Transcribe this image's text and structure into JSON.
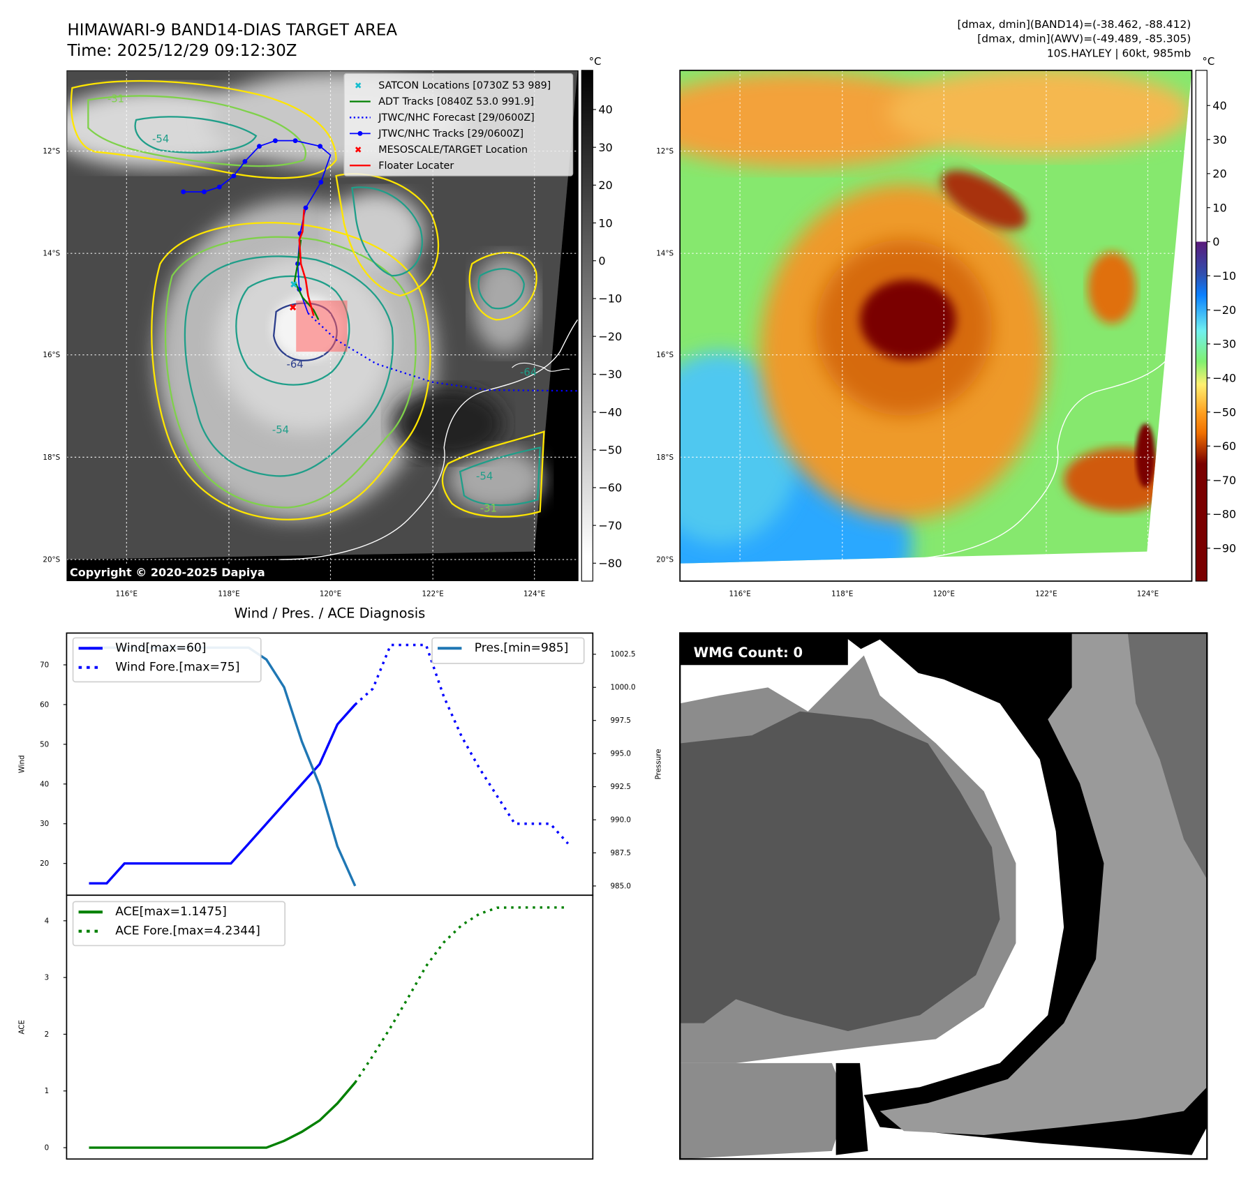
{
  "header": {
    "title": "HIMAWARI-9 BAND14-DIAS TARGET AREA",
    "time": "Time: 2025/12/29 09:12:30Z",
    "stats": [
      "[dmax, dmin](BAND14)=(-38.462, -88.412)",
      "[dmax, dmin](AWV)=(-49.489, -85.305)",
      "10S.HAYLEY | 60kt, 985mb"
    ]
  },
  "map": {
    "lat_ticks": [
      "12°S",
      "14°S",
      "16°S",
      "18°S",
      "20°S"
    ],
    "lon_ticks": [
      "116°E",
      "118°E",
      "120°E",
      "122°E",
      "124°E"
    ],
    "copyright": "Copyright © 2020-2025 Dapiya",
    "contour_labels": [
      "-54",
      "-64",
      "-54",
      "-31",
      "-31",
      "-54",
      "-64"
    ],
    "legend": [
      {
        "label": "SATCON Locations [0730Z 53 989]",
        "color": "#17becf",
        "style": "x"
      },
      {
        "label": "ADT Tracks [0840Z 53.0 991.9]",
        "color": "#008000",
        "style": "line"
      },
      {
        "label": "JTWC/NHC Forecast [29/0600Z]",
        "color": "#0000ff",
        "style": "dotted"
      },
      {
        "label": "JTWC/NHC Tracks [29/0600Z]",
        "color": "#0000ff",
        "style": "line-dot"
      },
      {
        "label": "MESOSCALE/TARGET Location",
        "color": "#ff0000",
        "style": "x"
      },
      {
        "label": "Floater Locater",
        "color": "#ff0000",
        "style": "line"
      }
    ]
  },
  "colorbars": {
    "unit": "°C",
    "left_ticks": [
      "40",
      "30",
      "20",
      "10",
      "0",
      "−10",
      "−20",
      "−30",
      "−40",
      "−50",
      "−60",
      "−70",
      "−80"
    ],
    "right_ticks": [
      "40",
      "30",
      "20",
      "10",
      "0",
      "−10",
      "−20",
      "−30",
      "−40",
      "−50",
      "−60",
      "−70",
      "−80",
      "−90"
    ]
  },
  "wmg": {
    "label": "WMG Count: 0"
  },
  "chart_data": [
    {
      "type": "line",
      "title": "Wind / Pres. / ACE Diagnosis",
      "ylabel": "Wind",
      "y2label": "Pressure",
      "x": [
        0,
        1,
        2,
        3,
        4,
        5,
        6,
        7,
        8,
        9,
        10,
        11,
        12,
        13,
        14,
        15,
        16,
        17,
        18,
        19,
        20,
        21,
        22,
        23,
        24,
        25,
        26,
        27
      ],
      "ylim": [
        12,
        78
      ],
      "y2lim": [
        984.3,
        1004.1
      ],
      "yticks": [
        "20",
        "30",
        "40",
        "50",
        "60",
        "70"
      ],
      "y2ticks": [
        "985.0",
        "987.5",
        "990.0",
        "992.5",
        "995.0",
        "997.5",
        "1000.0",
        "1002.5"
      ],
      "series": [
        {
          "name": "Wind[max=60]",
          "axis": "left",
          "color": "#0000ff",
          "style": "solid",
          "x": [
            0,
            1,
            2,
            3,
            4,
            5,
            6,
            7,
            8,
            9,
            10,
            11,
            12,
            13,
            14,
            15
          ],
          "values": [
            15,
            15,
            20,
            20,
            20,
            20,
            20,
            20,
            20,
            25,
            30,
            35,
            40,
            45,
            55,
            60
          ]
        },
        {
          "name": "Wind Fore.[max=75]",
          "axis": "left",
          "color": "#0000ff",
          "style": "dotted",
          "x": [
            15,
            16,
            17,
            18,
            19,
            20,
            21,
            22,
            23,
            24,
            25,
            26,
            27
          ],
          "values": [
            60,
            64,
            75,
            75,
            75,
            62,
            52,
            44,
            37,
            30,
            30,
            30,
            25
          ]
        },
        {
          "name": "Pres.[min=985]",
          "axis": "right",
          "color": "#1f77b4",
          "style": "solid",
          "x": [
            0,
            1,
            2,
            3,
            4,
            5,
            6,
            7,
            8,
            9,
            10,
            11,
            12,
            13,
            14,
            15
          ],
          "values": [
            1003,
            1003,
            1003,
            1003,
            1003,
            1003,
            1003,
            1003,
            1003,
            1003,
            1002.1,
            1000,
            995.9,
            992.6,
            988,
            985
          ]
        }
      ]
    },
    {
      "type": "line",
      "ylabel": "ACE",
      "x": [
        0,
        1,
        2,
        3,
        4,
        5,
        6,
        7,
        8,
        9,
        10,
        11,
        12,
        13,
        14,
        15,
        16,
        17,
        18,
        19,
        20,
        21,
        22,
        23,
        24,
        25,
        26,
        27
      ],
      "ylim": [
        -0.2,
        4.45
      ],
      "yticks": [
        "0",
        "1",
        "2",
        "3",
        "4"
      ],
      "series": [
        {
          "name": "ACE[max=1.1475]",
          "color": "#008000",
          "style": "solid",
          "x": [
            0,
            1,
            2,
            3,
            4,
            5,
            6,
            7,
            8,
            9,
            10,
            11,
            12,
            13,
            14,
            15
          ],
          "values": [
            0,
            0,
            0,
            0,
            0,
            0,
            0,
            0,
            0,
            0,
            0,
            0.12,
            0.28,
            0.48,
            0.78,
            1.1475
          ]
        },
        {
          "name": "ACE Fore.[max=4.2344]",
          "color": "#008000",
          "style": "dotted",
          "x": [
            15,
            16,
            17,
            18,
            19,
            20,
            21,
            22,
            23,
            24,
            25,
            26,
            27
          ],
          "values": [
            1.1475,
            1.62,
            2.12,
            2.65,
            3.2,
            3.62,
            3.92,
            4.12,
            4.23,
            4.2344,
            4.2344,
            4.2344,
            4.2344
          ]
        }
      ]
    }
  ]
}
